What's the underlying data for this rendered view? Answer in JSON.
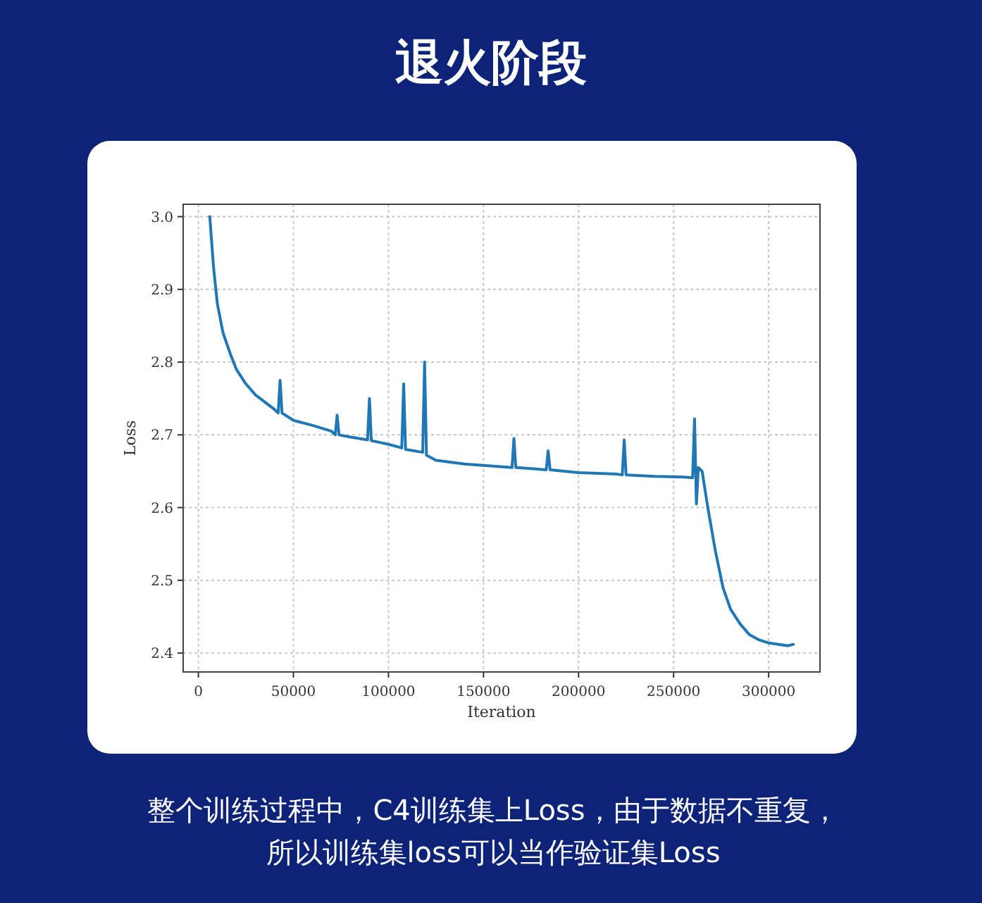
{
  "chart_data": {
    "type": "line",
    "title": "退火阶段",
    "xlabel": "Iteration",
    "ylabel": "Loss",
    "xlim": [
      -8000,
      327000
    ],
    "ylim": [
      2.374,
      3.017
    ],
    "xticks": [
      0,
      50000,
      100000,
      150000,
      200000,
      250000,
      300000
    ],
    "yticks": [
      2.4,
      2.5,
      2.6,
      2.7,
      2.8,
      2.9,
      {
        "value": 3.0,
        "label": "3.0"
      }
    ],
    "grid": true,
    "x": [
      6000,
      8000,
      10000,
      13000,
      17000,
      20000,
      25000,
      30000,
      35000,
      40000,
      42000,
      43000,
      44000,
      50000,
      60000,
      70000,
      72000,
      73000,
      74000,
      80000,
      89000,
      90000,
      91000,
      100000,
      107000,
      108000,
      109000,
      118000,
      119000,
      120000,
      125000,
      140000,
      150000,
      165000,
      166000,
      167000,
      183000,
      184000,
      185000,
      200000,
      220000,
      223000,
      224000,
      225000,
      240000,
      255000,
      260000,
      261000,
      262000,
      263000,
      265000,
      268000,
      272000,
      276000,
      280000,
      285000,
      290000,
      295000,
      300000,
      305000,
      310000,
      313000
    ],
    "series": [
      {
        "color": "#1f77b4",
        "values": [
          3.0,
          2.93,
          2.88,
          2.84,
          2.81,
          2.79,
          2.77,
          2.755,
          2.745,
          2.735,
          2.73,
          2.775,
          2.73,
          2.72,
          2.713,
          2.705,
          2.7,
          2.727,
          2.7,
          2.697,
          2.693,
          2.75,
          2.692,
          2.687,
          2.682,
          2.77,
          2.68,
          2.676,
          2.8,
          2.672,
          2.665,
          2.66,
          2.658,
          2.655,
          2.695,
          2.655,
          2.652,
          2.678,
          2.652,
          2.648,
          2.646,
          2.645,
          2.693,
          2.645,
          2.643,
          2.642,
          2.641,
          2.722,
          2.605,
          2.655,
          2.65,
          2.6,
          2.54,
          2.49,
          2.46,
          2.44,
          2.425,
          2.418,
          2.414,
          2.412,
          2.41,
          2.412
        ]
      }
    ],
    "annotations": [
      "整个训练过程中，C4训练集上Loss，由于数据不重复，所以训练集loss可以当作验证集Loss"
    ]
  }
}
